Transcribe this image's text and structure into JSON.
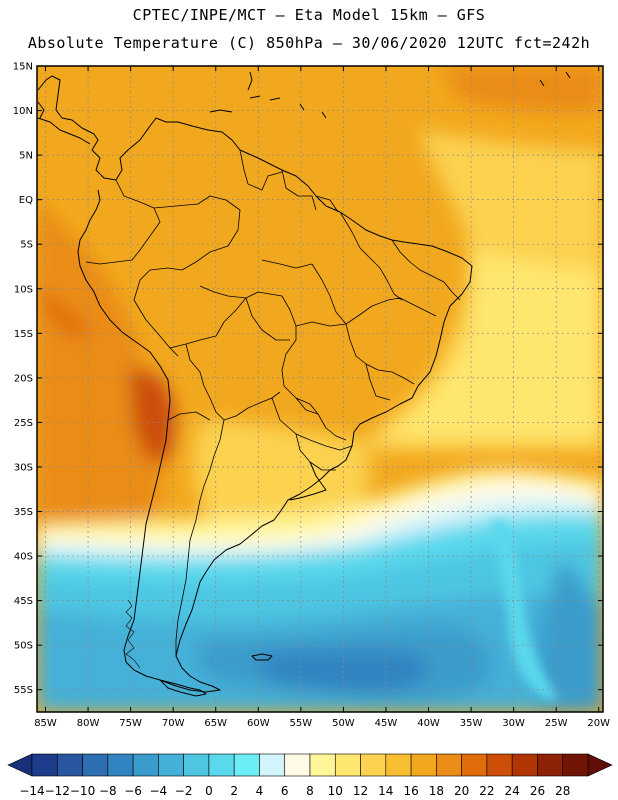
{
  "header": {
    "line1": "CPTEC/INPE/MCT –  Eta Model 15km – GFS",
    "line2": "Absolute Temperature (C) 850hPa – 30/06/2020 12UTC fct=242h"
  },
  "map": {
    "lat_labels": [
      "15N",
      "10N",
      "5N",
      "EQ",
      "5S",
      "10S",
      "15S",
      "20S",
      "25S",
      "30S",
      "35S",
      "40S",
      "45S",
      "50S",
      "55S"
    ],
    "lon_labels": [
      "85W",
      "80W",
      "75W",
      "70W",
      "65W",
      "60W",
      "55W",
      "50W",
      "45W",
      "40W",
      "35W",
      "30W",
      "25W",
      "20W"
    ],
    "lat_range": [
      15,
      -57.5
    ],
    "lon_range": [
      -86,
      -19.5
    ]
  },
  "colorbar": {
    "labels": [
      "-14",
      "-12",
      "-10",
      "-8",
      "-6",
      "-4",
      "-2",
      "0",
      "2",
      "4",
      "6",
      "8",
      "10",
      "12",
      "14",
      "16",
      "18",
      "20",
      "22",
      "24",
      "26",
      "28"
    ],
    "colors": [
      "#1e3c8c",
      "#2a56a0",
      "#2e6eb2",
      "#3284c0",
      "#3a9ccc",
      "#44b0d8",
      "#4ec6e2",
      "#5ad8ec",
      "#6ceef6",
      "#d2f4fc",
      "#fffae6",
      "#fff69a",
      "#ffe66e",
      "#fcd250",
      "#f8be32",
      "#f2a81e",
      "#ea8c16",
      "#e06c0c",
      "#cc4e08",
      "#b03606",
      "#8e2206",
      "#701406"
    ],
    "left_arrow_color": "#1a2f7a",
    "right_arrow_color": "#600e08"
  }
}
